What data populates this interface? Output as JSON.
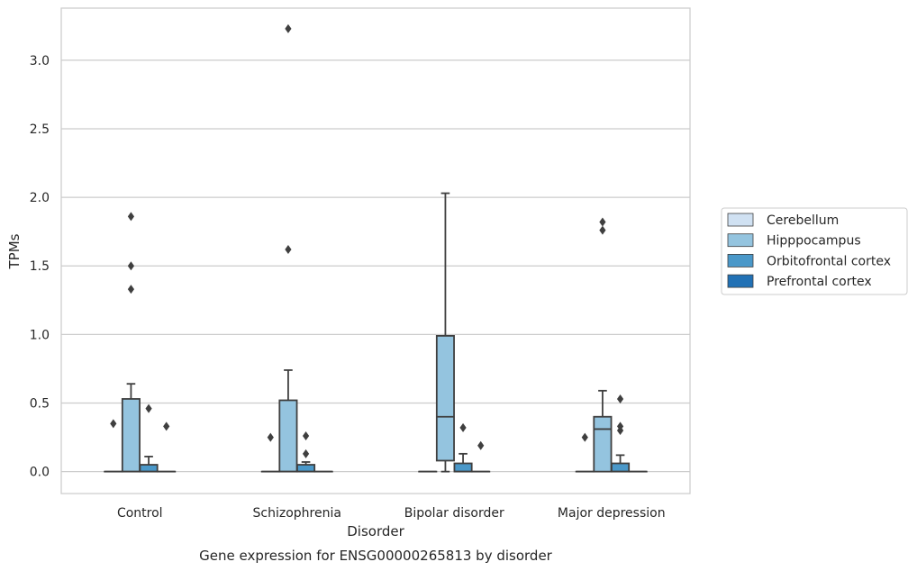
{
  "chart_data": {
    "type": "box",
    "title": "Gene expression for ENSG00000265813 by disorder",
    "xlabel": "Disorder",
    "ylabel": "TPMs",
    "ylim": [
      -0.16,
      3.38
    ],
    "yticks": [
      0.0,
      0.5,
      1.0,
      1.5,
      2.0,
      2.5,
      3.0
    ],
    "ytick_labels": [
      "0.0",
      "0.5",
      "1.0",
      "1.5",
      "2.0",
      "2.5",
      "3.0"
    ],
    "grid": "horizontal",
    "legend_placement": "right, outside",
    "categories": [
      "Control",
      "Schizophrenia",
      "Bipolar disorder",
      "Major depression"
    ],
    "series": [
      {
        "name": "Cerebellum",
        "color": "#d0e1f2",
        "boxes": [
          {
            "q1": 0,
            "median": 0,
            "q3": 0,
            "whisker_low": 0,
            "whisker_high": 0,
            "outliers": [
              0.35
            ]
          },
          {
            "q1": 0,
            "median": 0,
            "q3": 0,
            "whisker_low": 0,
            "whisker_high": 0,
            "outliers": [
              0.25
            ]
          },
          {
            "q1": 0,
            "median": 0,
            "q3": 0,
            "whisker_low": 0,
            "whisker_high": 0,
            "outliers": []
          },
          {
            "q1": 0,
            "median": 0,
            "q3": 0,
            "whisker_low": 0,
            "whisker_high": 0,
            "outliers": [
              0.25
            ]
          }
        ]
      },
      {
        "name": "Hipppocampus",
        "color": "#94c4df",
        "boxes": [
          {
            "q1": 0,
            "median": 0,
            "q3": 0.53,
            "whisker_low": 0,
            "whisker_high": 0.64,
            "outliers": [
              1.33,
              1.5,
              1.86
            ]
          },
          {
            "q1": 0,
            "median": 0,
            "q3": 0.52,
            "whisker_low": 0,
            "whisker_high": 0.74,
            "outliers": [
              1.62,
              3.23
            ]
          },
          {
            "q1": 0.08,
            "median": 0.4,
            "q3": 0.99,
            "whisker_low": 0,
            "whisker_high": 2.03,
            "outliers": []
          },
          {
            "q1": 0,
            "median": 0.31,
            "q3": 0.4,
            "whisker_low": 0,
            "whisker_high": 0.59,
            "outliers": [
              1.76,
              1.82
            ]
          }
        ]
      },
      {
        "name": "Orbitofrontal cortex",
        "color": "#4a98c9",
        "boxes": [
          {
            "q1": 0,
            "median": 0,
            "q3": 0.05,
            "whisker_low": 0,
            "whisker_high": 0.11,
            "outliers": [
              0.46
            ]
          },
          {
            "q1": 0,
            "median": 0,
            "q3": 0.05,
            "whisker_low": 0,
            "whisker_high": 0.07,
            "outliers": [
              0.13,
              0.26
            ]
          },
          {
            "q1": 0,
            "median": 0,
            "q3": 0.06,
            "whisker_low": 0,
            "whisker_high": 0.13,
            "outliers": [
              0.32
            ]
          },
          {
            "q1": 0,
            "median": 0,
            "q3": 0.06,
            "whisker_low": 0,
            "whisker_high": 0.12,
            "outliers": [
              0.3,
              0.33,
              0.53
            ]
          }
        ]
      },
      {
        "name": "Prefrontal cortex",
        "color": "#2171b5",
        "boxes": [
          {
            "q1": 0,
            "median": 0,
            "q3": 0,
            "whisker_low": 0,
            "whisker_high": 0,
            "outliers": [
              0.33
            ]
          },
          {
            "q1": 0,
            "median": 0,
            "q3": 0,
            "whisker_low": 0,
            "whisker_high": 0,
            "outliers": []
          },
          {
            "q1": 0,
            "median": 0,
            "q3": 0,
            "whisker_low": 0,
            "whisker_high": 0,
            "outliers": [
              0.19
            ]
          },
          {
            "q1": 0,
            "median": 0,
            "q3": 0,
            "whisker_low": 0,
            "whisker_high": 0,
            "outliers": []
          }
        ]
      }
    ]
  }
}
